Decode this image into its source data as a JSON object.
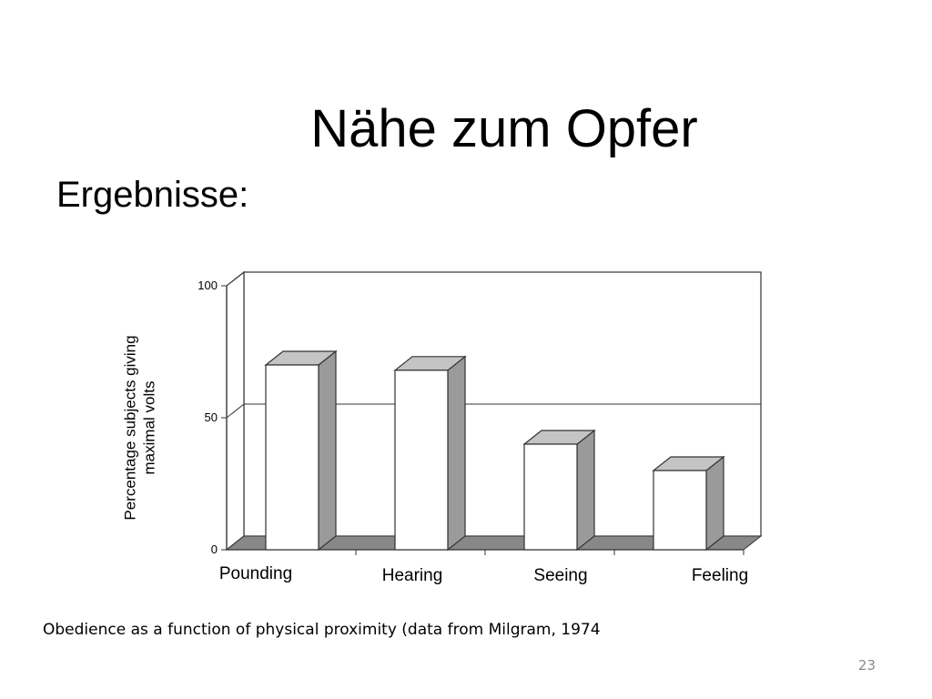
{
  "slide": {
    "title": "Nähe zum Opfer",
    "subheading": "Ergebnisse:",
    "caption": "Obedience as a function of physical proximity (data from Milgram, 1974",
    "slide_number": "23"
  },
  "chart_data": {
    "type": "bar",
    "categories": [
      "Pounding",
      "Hearing",
      "Seeing",
      "Feeling"
    ],
    "values": [
      70,
      68,
      40,
      30
    ],
    "ylabel": "Percentage subjects giving maximal volts",
    "ylabel_lines": [
      "Percentage subjects giving",
      "maximal volts"
    ],
    "yticks": [
      0,
      50,
      100
    ],
    "ylim": [
      0,
      100
    ],
    "grid": "horizontal at 50",
    "style": "3d",
    "colors": {
      "bar_front": "#ffffff",
      "bar_side": "#9a9a9a",
      "bar_top": "#c4c4c4",
      "floor": "#888888"
    }
  }
}
